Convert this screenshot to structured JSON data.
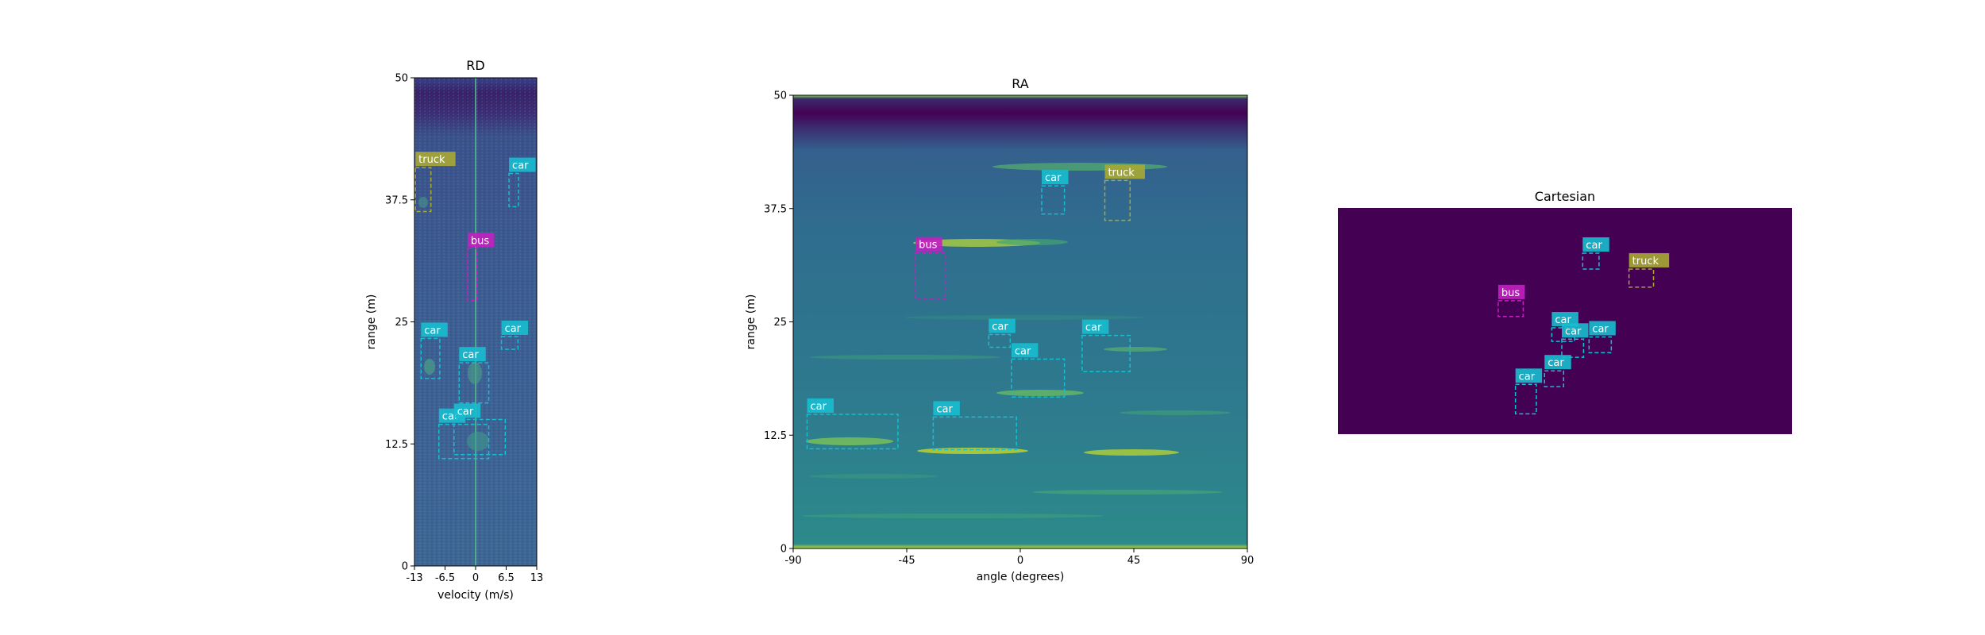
{
  "chart_data": [
    {
      "type": "heatmap",
      "title": "RD",
      "xlabel": "velocity (m/s)",
      "ylabel": "range (m)",
      "xlim": [
        -13,
        13
      ],
      "ylim": [
        0,
        50
      ],
      "xticks": [
        {
          "v": -13,
          "label": "-13"
        },
        {
          "v": -6.5,
          "label": "-6.5"
        },
        {
          "v": 0,
          "label": "0"
        },
        {
          "v": 6.5,
          "label": "6.5"
        },
        {
          "v": 13,
          "label": "13"
        }
      ],
      "yticks": [
        {
          "v": 0,
          "label": "0"
        },
        {
          "v": 12.5,
          "label": "12.5"
        },
        {
          "v": 25,
          "label": "25"
        },
        {
          "v": 37.5,
          "label": "37.5"
        },
        {
          "v": 50,
          "label": "50"
        }
      ],
      "boxes": [
        {
          "label": "truck",
          "x0": -12.8,
          "x1": -9.5,
          "y0": 36.3,
          "y1": 40.8,
          "color": "#a8a834"
        },
        {
          "label": "car",
          "x0": 7.1,
          "x1": 9.1,
          "y0": 36.8,
          "y1": 40.2,
          "color": "#17becf"
        },
        {
          "label": "bus",
          "x0": -1.7,
          "x1": 0.3,
          "y0": 27.2,
          "y1": 32.5,
          "color": "#c41fc1"
        },
        {
          "label": "car",
          "x0": -11.6,
          "x1": -7.6,
          "y0": 19.2,
          "y1": 23.3,
          "color": "#17becf"
        },
        {
          "label": "car",
          "x0": 5.5,
          "x1": 9.0,
          "y0": 22.2,
          "y1": 23.5,
          "color": "#17becf"
        },
        {
          "label": "car",
          "x0": -3.5,
          "x1": 2.8,
          "y0": 16.7,
          "y1": 20.8,
          "color": "#17becf"
        },
        {
          "label": "car",
          "x0": -7.8,
          "x1": 2.8,
          "y0": 11.0,
          "y1": 14.5,
          "color": "#17becf"
        },
        {
          "label": "car",
          "x0": -4.6,
          "x1": 6.3,
          "y0": 11.4,
          "y1": 15.0,
          "color": "#17becf"
        }
      ]
    },
    {
      "type": "heatmap",
      "title": "RA",
      "xlabel": "angle (degrees)",
      "ylabel": "range (m)",
      "xlim": [
        -90,
        90
      ],
      "ylim": [
        0,
        50
      ],
      "xticks": [
        {
          "v": -90,
          "label": "-90"
        },
        {
          "v": -45,
          "label": "-45"
        },
        {
          "v": 0,
          "label": "0"
        },
        {
          "v": 45,
          "label": "45"
        },
        {
          "v": 90,
          "label": "90"
        }
      ],
      "yticks": [
        {
          "v": 0,
          "label": "0"
        },
        {
          "v": 12.5,
          "label": "12.5"
        },
        {
          "v": 25,
          "label": "25"
        },
        {
          "v": 37.5,
          "label": "37.5"
        },
        {
          "v": 50,
          "label": "50"
        }
      ],
      "boxes": [
        {
          "label": "car",
          "x0": 8.5,
          "x1": 17.5,
          "y0": 36.9,
          "y1": 40.0,
          "color": "#17becf"
        },
        {
          "label": "truck",
          "x0": 33.5,
          "x1": 43.5,
          "y0": 36.2,
          "y1": 40.6,
          "color": "#a8a834"
        },
        {
          "label": "bus",
          "x0": -41.5,
          "x1": -29.5,
          "y0": 27.5,
          "y1": 32.6,
          "color": "#c41fc1"
        },
        {
          "label": "car",
          "x0": -12.5,
          "x1": -4.0,
          "y0": 22.2,
          "y1": 23.6,
          "color": "#17becf"
        },
        {
          "label": "car",
          "x0": 24.5,
          "x1": 43.5,
          "y0": 19.5,
          "y1": 23.5,
          "color": "#17becf"
        },
        {
          "label": "car",
          "x0": -3.5,
          "x1": 17.5,
          "y0": 16.7,
          "y1": 20.9,
          "color": "#17becf"
        },
        {
          "label": "car",
          "x0": -84.5,
          "x1": -48.5,
          "y0": 11.0,
          "y1": 14.8,
          "color": "#17becf"
        },
        {
          "label": "car",
          "x0": -34.5,
          "x1": -1.5,
          "y0": 10.9,
          "y1": 14.5,
          "color": "#17becf"
        }
      ]
    },
    {
      "type": "heatmap",
      "title": "Cartesian",
      "background": "#440154",
      "boxes": [
        {
          "label": "car",
          "x0": 0.539,
          "x1": 0.575,
          "y0": 0.2,
          "y1": 0.27,
          "color": "#17becf"
        },
        {
          "label": "truck",
          "x0": 0.641,
          "x1": 0.695,
          "y0": 0.27,
          "y1": 0.35,
          "color": "#a8a834"
        },
        {
          "label": "bus",
          "x0": 0.353,
          "x1": 0.408,
          "y0": 0.41,
          "y1": 0.48,
          "color": "#c41fc1"
        },
        {
          "label": "car",
          "x0": 0.471,
          "x1": 0.521,
          "y0": 0.53,
          "y1": 0.59,
          "color": "#17becf"
        },
        {
          "label": "car",
          "x0": 0.493,
          "x1": 0.541,
          "y0": 0.58,
          "y1": 0.66,
          "color": "#17becf"
        },
        {
          "label": "car",
          "x0": 0.553,
          "x1": 0.602,
          "y0": 0.57,
          "y1": 0.64,
          "color": "#17becf"
        },
        {
          "label": "car",
          "x0": 0.455,
          "x1": 0.497,
          "y0": 0.72,
          "y1": 0.79,
          "color": "#17becf"
        },
        {
          "label": "car",
          "x0": 0.391,
          "x1": 0.437,
          "y0": 0.78,
          "y1": 0.91,
          "color": "#17becf"
        }
      ]
    }
  ]
}
